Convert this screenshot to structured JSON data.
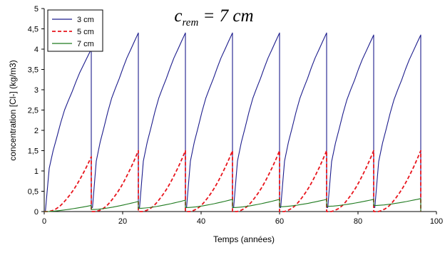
{
  "chart_data": {
    "type": "line",
    "title": {
      "prefix": "c",
      "subscript": "rem",
      "suffix": " = 7 cm"
    },
    "xlabel": "Temps (années)",
    "ylabel": "concentration [Cl-] (kg/m3)",
    "xlim": [
      0,
      100
    ],
    "ylim": [
      0,
      5
    ],
    "xticks": [
      0,
      20,
      40,
      60,
      80,
      100
    ],
    "yticks": [
      0,
      0.5,
      1,
      1.5,
      2,
      2.5,
      3,
      3.5,
      4,
      4.5,
      5
    ],
    "ytick_labels": [
      "0",
      "0,5",
      "1",
      "1,5",
      "2",
      "2,5",
      "3",
      "3,5",
      "4",
      "4,5",
      "5"
    ],
    "xtick_labels": [
      "0",
      "20",
      "40",
      "60",
      "80",
      "100"
    ],
    "legend_position": "top-left",
    "cycle_period": 12,
    "cycle_count": 8,
    "series": [
      {
        "name": "3 cm",
        "color": "#1c1c8c",
        "dash": "solid",
        "cycle_peaks": [
          4.0,
          4.4,
          4.4,
          4.4,
          4.4,
          4.4,
          4.35,
          4.35
        ],
        "cycle_start_values": [
          0,
          0.1,
          0.1,
          0.1,
          0.1,
          0.1,
          0.1,
          0.1
        ]
      },
      {
        "name": "5 cm",
        "color": "#e8141c",
        "dash": "dashed",
        "cycle_peaks": [
          1.35,
          1.5,
          1.5,
          1.5,
          1.5,
          1.5,
          1.5,
          1.5
        ],
        "cycle_start_values": [
          0,
          0,
          0,
          0,
          0,
          0,
          0,
          0
        ]
      },
      {
        "name": "7 cm",
        "color": "#1e7a1e",
        "dash": "solid",
        "cycle_peaks": [
          0.15,
          0.25,
          0.28,
          0.3,
          0.3,
          0.3,
          0.3,
          0.32
        ],
        "cycle_start_values": [
          0,
          0.05,
          0.08,
          0.1,
          0.1,
          0.12,
          0.13,
          0.15
        ]
      }
    ]
  }
}
